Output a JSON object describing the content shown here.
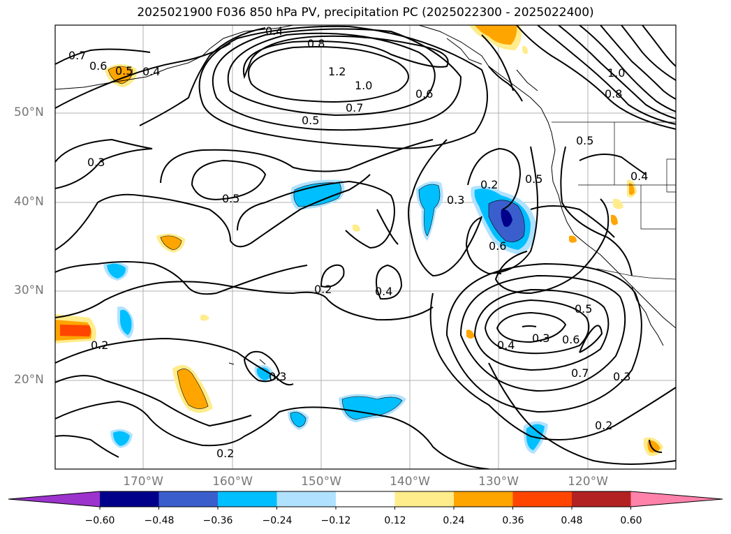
{
  "title": "2025021900 F036 850 hPa PV, precipitation PC (2025022300 - 2025022400)",
  "lat_labels": [
    "50°N",
    "40°N",
    "30°N",
    "20°N"
  ],
  "lon_labels": [
    "170°W",
    "160°W",
    "150°W",
    "140°W",
    "130°W",
    "120°W"
  ],
  "colorbar": {
    "colors": [
      "#9b33cc",
      "#00008b",
      "#3a5fcd",
      "#00bfff",
      "#b0e2ff",
      "#ffffff",
      "#ffec8b",
      "#ffa500",
      "#ff4500",
      "#b22222",
      "#ff82ab"
    ],
    "tick_labels": [
      "−0.60",
      "−0.48",
      "−0.36",
      "−0.24",
      "−0.12",
      "0.12",
      "0.24",
      "0.36",
      "0.48",
      "0.60"
    ]
  },
  "contour_labels": [
    "0.7",
    "0.6",
    "0.5",
    "0.4",
    "0.4",
    "0.8",
    "1.2",
    "1.0",
    "0.7",
    "0.6",
    "0.5",
    "0.3",
    "0.5",
    "0.3",
    "0.2",
    "0.5",
    "0.6",
    "0.5",
    "0.4",
    "0.2",
    "0.4",
    "0.4",
    "0.3",
    "0.6",
    "0.5",
    "0.7",
    "0.3",
    "0.2",
    "0.2",
    "0.3",
    "0.2",
    "1.0",
    "0.8"
  ]
}
